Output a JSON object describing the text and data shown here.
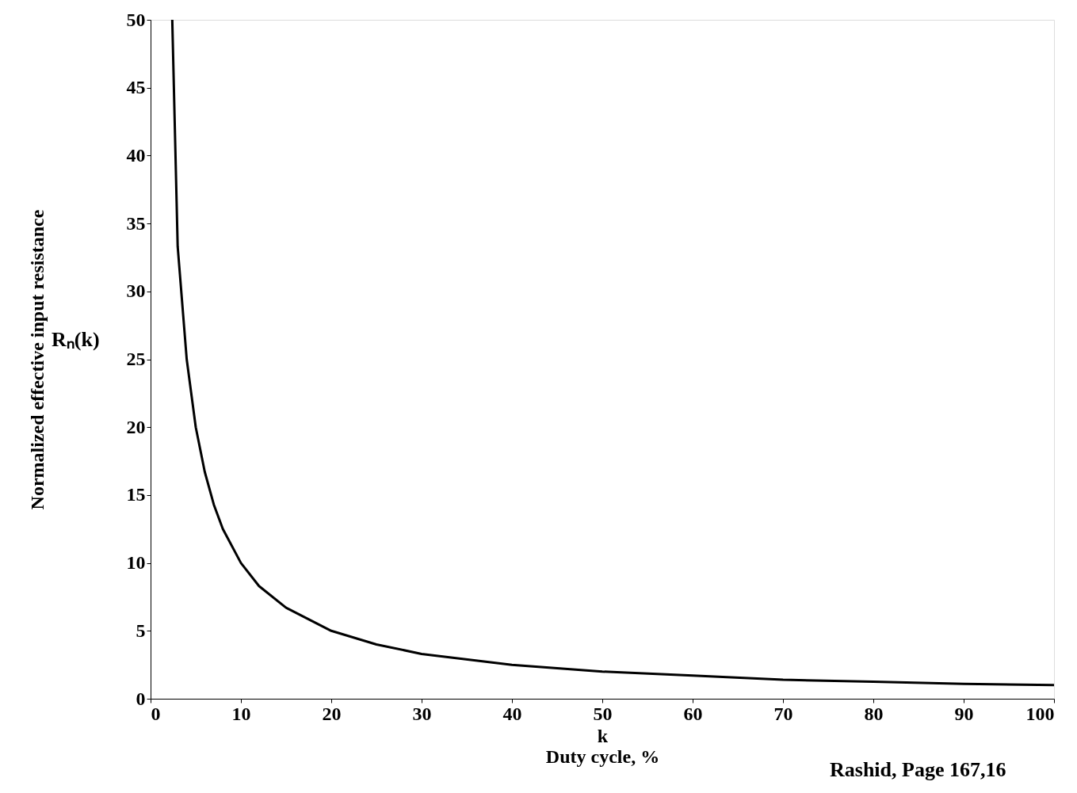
{
  "chart_data": {
    "type": "line",
    "xlabel": "k\nDuty cycle, %",
    "ylabel": "Normalized effective input resistance",
    "annotations": [
      "Rₙ(k)",
      "Rashid, Page 167,16"
    ],
    "x": [
      2.4,
      3,
      4,
      5,
      6,
      7,
      8,
      10,
      12,
      15,
      20,
      25,
      30,
      40,
      50,
      60,
      70,
      80,
      90,
      100
    ],
    "series": [
      {
        "color": "#000000",
        "values": [
          50,
          33.3,
          25,
          20,
          16.7,
          14.3,
          12.5,
          10,
          8.3,
          6.7,
          5,
          4,
          3.3,
          2.5,
          2,
          1.7,
          1.4,
          1.25,
          1.1,
          1
        ]
      }
    ],
    "xlim": [
      0,
      100
    ],
    "xticks": [
      0,
      10,
      20,
      30,
      40,
      50,
      60,
      70,
      80,
      90,
      100
    ],
    "ylim": [
      0,
      50
    ],
    "yticks": [
      0,
      5,
      10,
      15,
      20,
      25,
      30,
      35,
      40,
      45,
      50
    ],
    "grid": false,
    "marker": "none",
    "line_style": "solid"
  }
}
